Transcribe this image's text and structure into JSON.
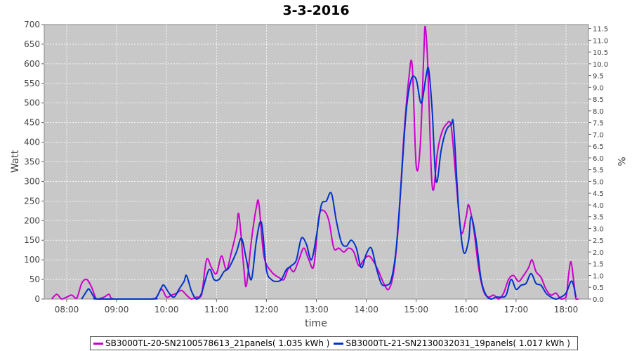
{
  "chart_data": {
    "type": "line",
    "title": "3-3-2016",
    "xlabel": "time",
    "ylabel": "Watt",
    "y2label": "%",
    "x_unit": "hours",
    "xlim": [
      7.55,
      18.45
    ],
    "ylim": [
      0,
      700
    ],
    "y2lim": [
      0,
      11.667
    ],
    "y_ticks": [
      0,
      50,
      100,
      150,
      200,
      250,
      300,
      350,
      400,
      450,
      500,
      550,
      600,
      650,
      700
    ],
    "y2_ticks": [
      "0.0",
      "0.5",
      "1.0",
      "1.5",
      "2.0",
      "2.5",
      "3.0",
      "3.5",
      "4.0",
      "4.5",
      "5.0",
      "5.5",
      "6.0",
      "6.5",
      "7.0",
      "7.5",
      "8.0",
      "8.5",
      "9.0",
      "9.5",
      "10.0",
      "10.5",
      "11.0",
      "11.5"
    ],
    "x_ticks": [
      {
        "t": 8,
        "label": "08:00"
      },
      {
        "t": 9,
        "label": "09:00"
      },
      {
        "t": 10,
        "label": "10:00"
      },
      {
        "t": 11,
        "label": "11:00"
      },
      {
        "t": 12,
        "label": "12:00"
      },
      {
        "t": 13,
        "label": "13:00"
      },
      {
        "t": 14,
        "label": "14:00"
      },
      {
        "t": 15,
        "label": "15:00"
      },
      {
        "t": 16,
        "label": "16:00"
      },
      {
        "t": 17,
        "label": "17:00"
      },
      {
        "t": 18,
        "label": "18:00"
      }
    ],
    "grid": true,
    "legend_position": "bottom",
    "colors": {
      "plot_bg": "#c8c8c8",
      "grid": "#ffffff",
      "series1": "#cc00cc",
      "series2": "#0033cc"
    },
    "series": [
      {
        "name": "SB3000TL-20-SN2100578613_21panels( 1.035 kWh )",
        "color": "#cc00cc",
        "points": [
          [
            7.7,
            0
          ],
          [
            7.8,
            12
          ],
          [
            7.9,
            0
          ],
          [
            8.0,
            5
          ],
          [
            8.1,
            10
          ],
          [
            8.2,
            2
          ],
          [
            8.3,
            40
          ],
          [
            8.4,
            50
          ],
          [
            8.5,
            30
          ],
          [
            8.6,
            0
          ],
          [
            8.75,
            5
          ],
          [
            8.85,
            12
          ],
          [
            8.95,
            0
          ],
          [
            9.5,
            0
          ],
          [
            9.7,
            0
          ],
          [
            9.8,
            5
          ],
          [
            9.9,
            25
          ],
          [
            10.0,
            5
          ],
          [
            10.1,
            10
          ],
          [
            10.2,
            15
          ],
          [
            10.3,
            22
          ],
          [
            10.4,
            10
          ],
          [
            10.5,
            0
          ],
          [
            10.6,
            5
          ],
          [
            10.7,
            10
          ],
          [
            10.8,
            100
          ],
          [
            10.9,
            80
          ],
          [
            11.0,
            65
          ],
          [
            11.1,
            110
          ],
          [
            11.2,
            75
          ],
          [
            11.3,
            120
          ],
          [
            11.4,
            175
          ],
          [
            11.45,
            215
          ],
          [
            11.55,
            75
          ],
          [
            11.6,
            35
          ],
          [
            11.7,
            150
          ],
          [
            11.8,
            235
          ],
          [
            11.85,
            242
          ],
          [
            11.95,
            110
          ],
          [
            12.1,
            70
          ],
          [
            12.25,
            55
          ],
          [
            12.35,
            50
          ],
          [
            12.45,
            80
          ],
          [
            12.55,
            70
          ],
          [
            12.65,
            100
          ],
          [
            12.75,
            130
          ],
          [
            12.85,
            100
          ],
          [
            12.95,
            85
          ],
          [
            13.05,
            210
          ],
          [
            13.15,
            225
          ],
          [
            13.25,
            200
          ],
          [
            13.35,
            130
          ],
          [
            13.45,
            130
          ],
          [
            13.55,
            120
          ],
          [
            13.65,
            130
          ],
          [
            13.75,
            120
          ],
          [
            13.85,
            85
          ],
          [
            13.95,
            100
          ],
          [
            14.05,
            110
          ],
          [
            14.15,
            95
          ],
          [
            14.25,
            70
          ],
          [
            14.35,
            40
          ],
          [
            14.45,
            25
          ],
          [
            14.55,
            70
          ],
          [
            14.65,
            200
          ],
          [
            14.75,
            410
          ],
          [
            14.85,
            560
          ],
          [
            14.92,
            595
          ],
          [
            15.0,
            340
          ],
          [
            15.08,
            390
          ],
          [
            15.15,
            620
          ],
          [
            15.18,
            695
          ],
          [
            15.23,
            600
          ],
          [
            15.3,
            330
          ],
          [
            15.35,
            280
          ],
          [
            15.42,
            370
          ],
          [
            15.5,
            420
          ],
          [
            15.6,
            445
          ],
          [
            15.7,
            440
          ],
          [
            15.8,
            300
          ],
          [
            15.9,
            170
          ],
          [
            16.0,
            210
          ],
          [
            16.05,
            240
          ],
          [
            16.15,
            180
          ],
          [
            16.25,
            80
          ],
          [
            16.35,
            20
          ],
          [
            16.45,
            5
          ],
          [
            16.55,
            10
          ],
          [
            16.65,
            0
          ],
          [
            16.75,
            15
          ],
          [
            16.85,
            50
          ],
          [
            16.95,
            60
          ],
          [
            17.05,
            45
          ],
          [
            17.15,
            60
          ],
          [
            17.25,
            80
          ],
          [
            17.32,
            100
          ],
          [
            17.4,
            70
          ],
          [
            17.5,
            55
          ],
          [
            17.6,
            25
          ],
          [
            17.7,
            10
          ],
          [
            17.8,
            15
          ],
          [
            17.9,
            0
          ],
          [
            18.0,
            5
          ],
          [
            18.05,
            60
          ],
          [
            18.1,
            95
          ],
          [
            18.15,
            50
          ],
          [
            18.2,
            0
          ],
          [
            18.25,
            0
          ]
        ]
      },
      {
        "name": "SB3000TL-21-SN2130032031_19panels( 1.017 kWh )",
        "color": "#0033cc",
        "points": [
          [
            8.3,
            0
          ],
          [
            8.4,
            20
          ],
          [
            8.45,
            25
          ],
          [
            8.55,
            5
          ],
          [
            8.65,
            0
          ],
          [
            9.7,
            0
          ],
          [
            9.8,
            5
          ],
          [
            9.9,
            30
          ],
          [
            9.95,
            35
          ],
          [
            10.05,
            15
          ],
          [
            10.15,
            5
          ],
          [
            10.25,
            25
          ],
          [
            10.35,
            45
          ],
          [
            10.4,
            60
          ],
          [
            10.5,
            20
          ],
          [
            10.6,
            0
          ],
          [
            10.7,
            15
          ],
          [
            10.85,
            75
          ],
          [
            10.95,
            50
          ],
          [
            11.05,
            50
          ],
          [
            11.15,
            70
          ],
          [
            11.25,
            80
          ],
          [
            11.4,
            120
          ],
          [
            11.5,
            155
          ],
          [
            11.6,
            100
          ],
          [
            11.7,
            50
          ],
          [
            11.8,
            150
          ],
          [
            11.9,
            195
          ],
          [
            12.0,
            75
          ],
          [
            12.1,
            50
          ],
          [
            12.2,
            45
          ],
          [
            12.3,
            50
          ],
          [
            12.4,
            75
          ],
          [
            12.5,
            85
          ],
          [
            12.6,
            100
          ],
          [
            12.7,
            155
          ],
          [
            12.8,
            140
          ],
          [
            12.9,
            100
          ],
          [
            13.0,
            160
          ],
          [
            13.1,
            240
          ],
          [
            13.2,
            250
          ],
          [
            13.3,
            270
          ],
          [
            13.4,
            200
          ],
          [
            13.5,
            145
          ],
          [
            13.6,
            135
          ],
          [
            13.7,
            150
          ],
          [
            13.8,
            130
          ],
          [
            13.9,
            80
          ],
          [
            14.0,
            115
          ],
          [
            14.1,
            130
          ],
          [
            14.2,
            80
          ],
          [
            14.3,
            40
          ],
          [
            14.4,
            35
          ],
          [
            14.5,
            50
          ],
          [
            14.6,
            130
          ],
          [
            14.7,
            300
          ],
          [
            14.8,
            480
          ],
          [
            14.9,
            560
          ],
          [
            15.0,
            560
          ],
          [
            15.1,
            500
          ],
          [
            15.2,
            570
          ],
          [
            15.25,
            585
          ],
          [
            15.32,
            480
          ],
          [
            15.4,
            300
          ],
          [
            15.5,
            380
          ],
          [
            15.6,
            430
          ],
          [
            15.7,
            445
          ],
          [
            15.75,
            440
          ],
          [
            15.85,
            230
          ],
          [
            15.95,
            120
          ],
          [
            16.05,
            150
          ],
          [
            16.1,
            210
          ],
          [
            16.2,
            150
          ],
          [
            16.3,
            50
          ],
          [
            16.4,
            10
          ],
          [
            16.5,
            0
          ],
          [
            16.6,
            5
          ],
          [
            16.7,
            5
          ],
          [
            16.8,
            10
          ],
          [
            16.9,
            50
          ],
          [
            17.0,
            25
          ],
          [
            17.1,
            35
          ],
          [
            17.2,
            40
          ],
          [
            17.3,
            65
          ],
          [
            17.4,
            40
          ],
          [
            17.5,
            35
          ],
          [
            17.6,
            15
          ],
          [
            17.7,
            5
          ],
          [
            17.8,
            0
          ],
          [
            17.9,
            5
          ],
          [
            18.0,
            15
          ],
          [
            18.1,
            45
          ],
          [
            18.15,
            35
          ],
          [
            18.2,
            5
          ]
        ]
      }
    ]
  }
}
